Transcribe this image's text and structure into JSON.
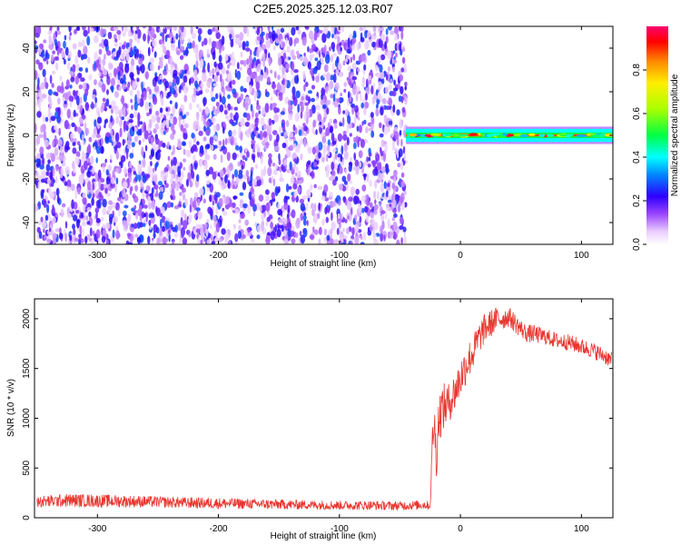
{
  "title": "C2E5.2025.325.12.03.R07",
  "chart_data": [
    {
      "type": "heatmap",
      "xlabel": "Height of straight line (km)",
      "ylabel": "Frequency (Hz)",
      "xlim": [
        -352,
        126
      ],
      "ylim": [
        -50,
        50
      ],
      "xticks": [
        -300,
        -200,
        -100,
        0,
        100
      ],
      "yticks": [
        -40,
        -20,
        0,
        20,
        40
      ],
      "colorbar": {
        "label": "Normalized spectral amplitude",
        "range": [
          0,
          1
        ],
        "ticks": [
          "0.0",
          "0.2",
          "0.4",
          "0.6",
          "0.8"
        ],
        "colormap": "rainbow"
      },
      "regions": [
        {
          "x": [
            -352,
            -45
          ],
          "freq": [
            -50,
            50
          ],
          "amplitude": [
            0,
            0.15
          ],
          "description": "broadband low-amplitude noise"
        },
        {
          "x": [
            -45,
            126
          ],
          "freq": [
            -3,
            3
          ],
          "amplitude": [
            0.3,
            1.0
          ],
          "description": "narrow band centered at 0 Hz"
        }
      ],
      "grid": false
    },
    {
      "type": "line",
      "xlabel": "Height of straight line (km)",
      "ylabel": "SNR (10 * v/v)",
      "xlim": [
        -352,
        126
      ],
      "ylim": [
        0,
        2200
      ],
      "xticks": [
        -300,
        -200,
        -100,
        0,
        100
      ],
      "yticks": [
        0,
        500,
        1000,
        1500,
        2000
      ],
      "series": [
        {
          "x": [
            -350,
            -325,
            -300,
            -275,
            -250,
            -225,
            -200,
            -175,
            -150,
            -125,
            -100,
            -75,
            -50,
            -30,
            -25,
            -23,
            -22,
            -20,
            -18,
            -15,
            -10,
            -5,
            0,
            5,
            10,
            15,
            20,
            25,
            30,
            35,
            40,
            45,
            50,
            55,
            60,
            70,
            80,
            90,
            100,
            110,
            120,
            125
          ],
          "y": [
            160,
            175,
            170,
            165,
            160,
            150,
            145,
            140,
            135,
            130,
            125,
            125,
            120,
            130,
            120,
            800,
            1000,
            600,
            1000,
            1100,
            1150,
            1250,
            1400,
            1550,
            1650,
            1800,
            1900,
            1950,
            2000,
            2000,
            2020,
            1960,
            1900,
            1850,
            1850,
            1820,
            1780,
            1760,
            1720,
            1680,
            1620,
            1580
          ],
          "noise": [
            60,
            65,
            65,
            60,
            55,
            55,
            55,
            50,
            50,
            45,
            45,
            45,
            45,
            45,
            40,
            200,
            300,
            250,
            250,
            250,
            200,
            200,
            200,
            200,
            180,
            160,
            150,
            140,
            120,
            110,
            100,
            100,
            90,
            90,
            90,
            80,
            80,
            80,
            80,
            80,
            80,
            80
          ]
        }
      ],
      "color": "#e8352f",
      "grid": false
    }
  ]
}
